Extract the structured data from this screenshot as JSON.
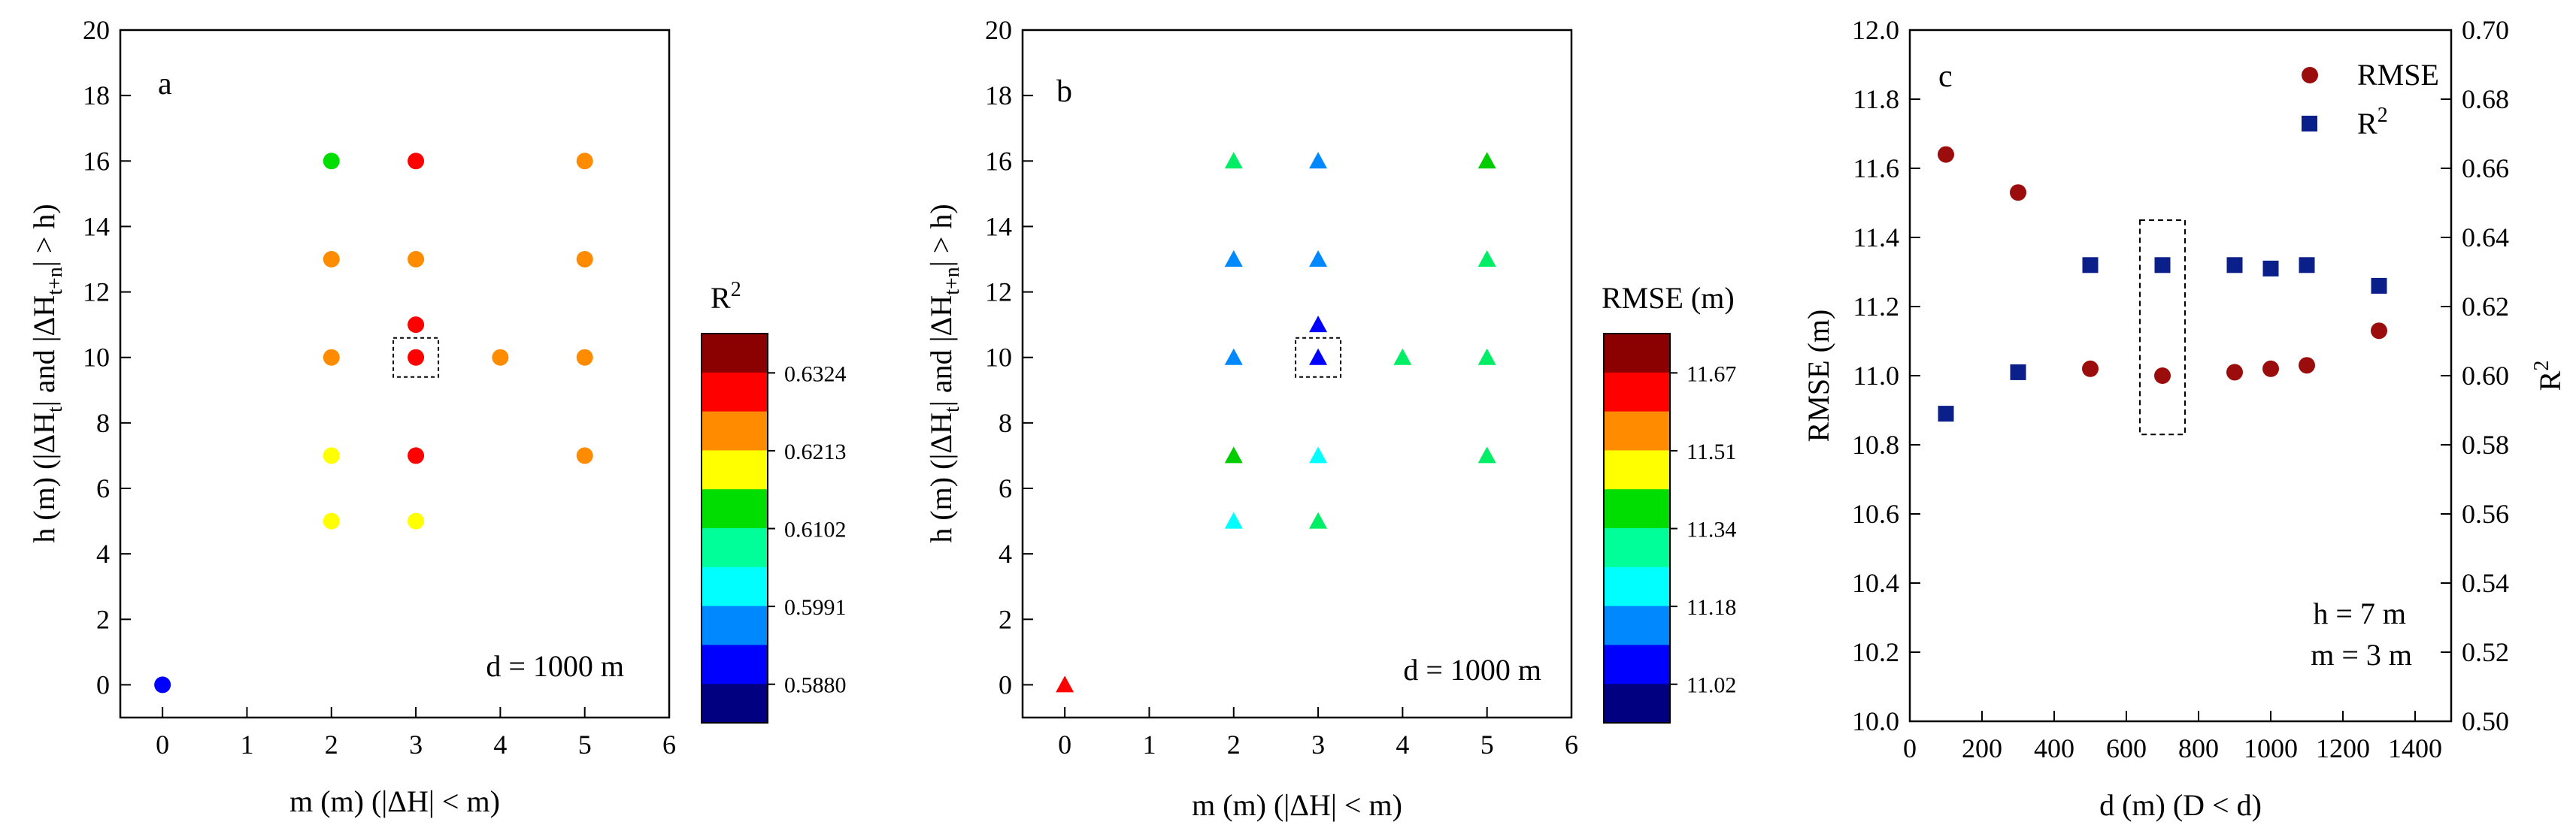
{
  "chart_data": [
    {
      "type": "scatter",
      "panel": "a",
      "xlabel": "m (m) (|ΔH| < m)",
      "ylabel": {
        "main": "h (m) (|ΔH",
        "sub1": "t",
        "mid": "| and |ΔH",
        "sub2": "t+n",
        "end": "| > h)"
      },
      "xlim": [
        -0.5,
        6
      ],
      "ylim": [
        -1,
        20
      ],
      "xticks": [
        0,
        1,
        2,
        3,
        4,
        5,
        6
      ],
      "yticks": [
        0,
        2,
        4,
        6,
        8,
        10,
        12,
        14,
        16,
        18,
        20
      ],
      "annotation": "d = 1000 m",
      "colorbar": {
        "title": "R",
        "title_sup": "2",
        "labels": [
          "0.6324",
          "0.6213",
          "0.6102",
          "0.5991",
          "0.5880"
        ],
        "colors": [
          "#8b0000",
          "#ff0000",
          "#ff8c00",
          "#ffff00",
          "#00dd00",
          "#00ff99",
          "#00ffff",
          "#0088ff",
          "#0000ff",
          "#000080"
        ]
      },
      "marker": "circle",
      "highlight": {
        "m": 3,
        "h": 10
      },
      "points": [
        {
          "m": 0,
          "h": 0,
          "color": "#0000ff"
        },
        {
          "m": 2,
          "h": 16,
          "color": "#00dd00"
        },
        {
          "m": 3,
          "h": 16,
          "color": "#ff0000"
        },
        {
          "m": 5,
          "h": 16,
          "color": "#ff8c00"
        },
        {
          "m": 2,
          "h": 13,
          "color": "#ff8c00"
        },
        {
          "m": 3,
          "h": 13,
          "color": "#ff8c00"
        },
        {
          "m": 5,
          "h": 13,
          "color": "#ff8c00"
        },
        {
          "m": 3,
          "h": 11,
          "color": "#ff0000"
        },
        {
          "m": 2,
          "h": 10,
          "color": "#ff8c00"
        },
        {
          "m": 3,
          "h": 10,
          "color": "#ff0000"
        },
        {
          "m": 4,
          "h": 10,
          "color": "#ff8c00"
        },
        {
          "m": 5,
          "h": 10,
          "color": "#ff8c00"
        },
        {
          "m": 2,
          "h": 7,
          "color": "#ffff00"
        },
        {
          "m": 3,
          "h": 7,
          "color": "#ff0000"
        },
        {
          "m": 5,
          "h": 7,
          "color": "#ff8c00"
        },
        {
          "m": 2,
          "h": 5,
          "color": "#ffff00"
        },
        {
          "m": 3,
          "h": 5,
          "color": "#ffff00"
        }
      ]
    },
    {
      "type": "scatter",
      "panel": "b",
      "xlabel": "m (m) (|ΔH| < m)",
      "ylabel": {
        "main": "h (m) (|ΔH",
        "sub1": "t",
        "mid": "| and |ΔH",
        "sub2": "t+n",
        "end": "| > h)"
      },
      "xlim": [
        -0.5,
        6
      ],
      "ylim": [
        -1,
        20
      ],
      "xticks": [
        0,
        1,
        2,
        3,
        4,
        5,
        6
      ],
      "yticks": [
        0,
        2,
        4,
        6,
        8,
        10,
        12,
        14,
        16,
        18,
        20
      ],
      "annotation": "d = 1000 m",
      "colorbar": {
        "title": "RMSE (m)",
        "title_sup": "",
        "labels": [
          "11.67",
          "11.51",
          "11.34",
          "11.18",
          "11.02"
        ],
        "colors": [
          "#8b0000",
          "#ff0000",
          "#ff8c00",
          "#ffff00",
          "#00dd00",
          "#00ff99",
          "#00ffff",
          "#0088ff",
          "#0000ff",
          "#000080"
        ]
      },
      "marker": "triangle",
      "highlight": {
        "m": 3,
        "h": 10
      },
      "points": [
        {
          "m": 0,
          "h": 0,
          "color": "#ff0000"
        },
        {
          "m": 2,
          "h": 16,
          "color": "#00ee66"
        },
        {
          "m": 3,
          "h": 16,
          "color": "#0088ff"
        },
        {
          "m": 5,
          "h": 16,
          "color": "#00cc00"
        },
        {
          "m": 2,
          "h": 13,
          "color": "#0088ff"
        },
        {
          "m": 3,
          "h": 13,
          "color": "#0088ff"
        },
        {
          "m": 5,
          "h": 13,
          "color": "#00ee66"
        },
        {
          "m": 3,
          "h": 11,
          "color": "#0000ff"
        },
        {
          "m": 2,
          "h": 10,
          "color": "#0088ff"
        },
        {
          "m": 3,
          "h": 10,
          "color": "#0000ff"
        },
        {
          "m": 4,
          "h": 10,
          "color": "#00ee66"
        },
        {
          "m": 5,
          "h": 10,
          "color": "#00ee66"
        },
        {
          "m": 2,
          "h": 7,
          "color": "#00cc00"
        },
        {
          "m": 3,
          "h": 7,
          "color": "#00ffff"
        },
        {
          "m": 5,
          "h": 7,
          "color": "#00ee66"
        },
        {
          "m": 2,
          "h": 5,
          "color": "#00ffff"
        },
        {
          "m": 3,
          "h": 5,
          "color": "#00ee66"
        }
      ]
    },
    {
      "type": "scatter",
      "panel": "c",
      "xlabel": "d (m) (D < d)",
      "ylabel": "RMSE (m)",
      "ylabel_right": "R",
      "ylabel_right_sup": "2",
      "xlim": [
        0,
        1500
      ],
      "ylim": [
        10.0,
        12.0
      ],
      "ylim_right": [
        0.5,
        0.7
      ],
      "xticks": [
        0,
        200,
        400,
        600,
        800,
        1000,
        1200,
        1400
      ],
      "yticks": [
        "10.0",
        "10.2",
        "10.4",
        "10.6",
        "10.8",
        "11.0",
        "11.2",
        "11.4",
        "11.6",
        "11.8",
        "12.0"
      ],
      "yticks_right": [
        "0.50",
        "0.52",
        "0.54",
        "0.56",
        "0.58",
        "0.60",
        "0.62",
        "0.64",
        "0.66",
        "0.68",
        "0.70"
      ],
      "highlight_x": 700,
      "annotations": [
        "h = 7 m",
        "m = 3 m"
      ],
      "legend": {
        "placement": "top-right",
        "entries": [
          "RMSE",
          "R"
        ],
        "sup": "2"
      },
      "series": [
        {
          "name": "RMSE",
          "marker": "circle",
          "color": "#9b0d0d",
          "axis": "left",
          "x": [
            100,
            300,
            500,
            700,
            900,
            1000,
            1100,
            1300
          ],
          "y": [
            11.64,
            11.53,
            11.02,
            11.0,
            11.01,
            11.02,
            11.03,
            11.13
          ]
        },
        {
          "name": "R2",
          "marker": "square",
          "color": "#0b1f8a",
          "axis": "right",
          "x": [
            100,
            300,
            500,
            700,
            900,
            1000,
            1100,
            1300
          ],
          "y": [
            0.589,
            0.601,
            0.632,
            0.632,
            0.632,
            0.631,
            0.632,
            0.626
          ]
        }
      ]
    }
  ]
}
